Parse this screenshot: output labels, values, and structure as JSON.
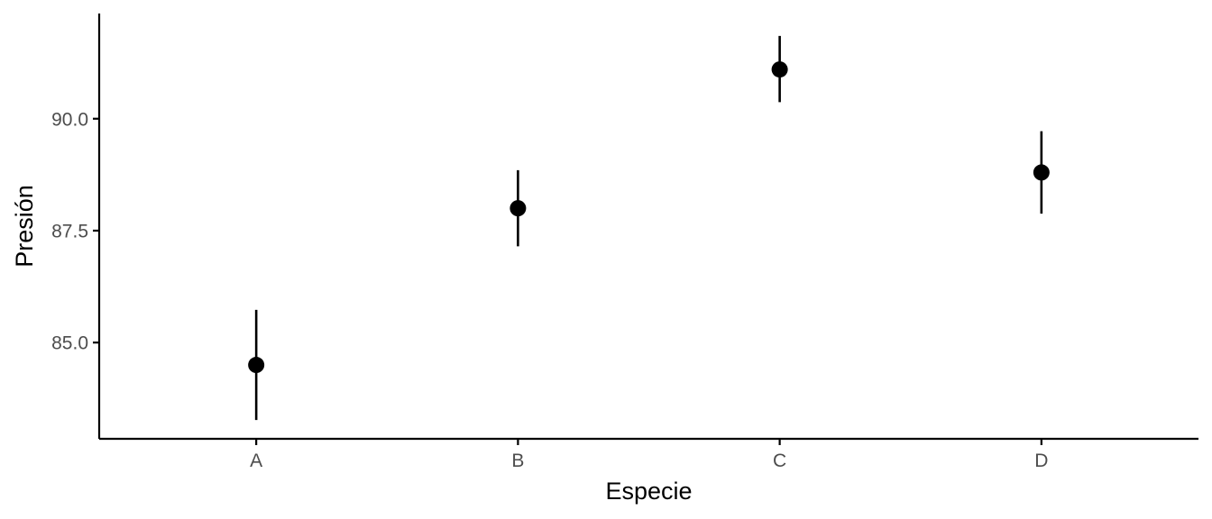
{
  "chart_data": {
    "type": "scatter",
    "title": "",
    "xlabel": "Especie",
    "ylabel": "Presión",
    "categories": [
      "A",
      "B",
      "C",
      "D"
    ],
    "series": [
      {
        "values": [
          84.5,
          88.0,
          91.1,
          88.8
        ],
        "error_low": [
          83.27,
          87.15,
          90.37,
          87.88
        ],
        "error_high": [
          85.73,
          88.85,
          91.85,
          89.72
        ]
      }
    ],
    "ylim": [
      82.85,
      92.35
    ],
    "y_ticks": [
      85.0,
      87.5,
      90.0
    ],
    "y_tick_labels": [
      "85.0",
      "87.5",
      "90.0"
    ],
    "grid": false,
    "legend": "none",
    "colors": {
      "point": "#000000",
      "error_bar": "#000000",
      "axis": "#000000",
      "tick_label": "#4d4d4d"
    }
  }
}
